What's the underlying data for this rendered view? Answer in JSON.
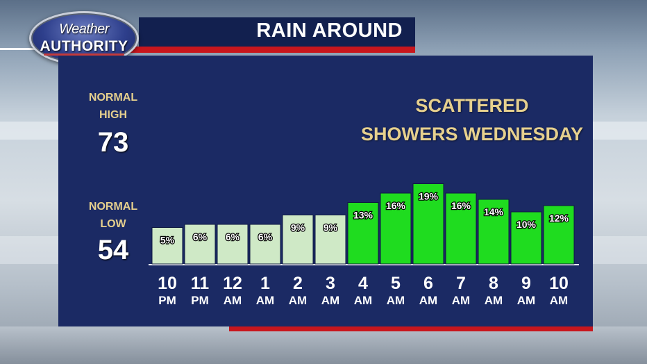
{
  "logo": {
    "line1": "Weather",
    "line2": "AUTHORITY"
  },
  "title": "RAIN AROUND",
  "normals": {
    "high_label_1": "NORMAL",
    "high_label_2": "HIGH",
    "high_value": "73",
    "low_label_1": "NORMAL",
    "low_label_2": "LOW",
    "low_value": "54"
  },
  "headline": {
    "line1": "SCATTERED",
    "line2": "SHOWERS WEDNESDAY"
  },
  "colors": {
    "panel": "#1b2a64",
    "accent_red": "#c8161d",
    "label_gold": "#e6d08e",
    "bar_light": "#cfe9c6",
    "bar_bright": "#1fdc1f"
  },
  "chart_data": {
    "type": "bar",
    "categories": [
      "10 PM",
      "11 PM",
      "12 AM",
      "1 AM",
      "2 AM",
      "3 AM",
      "4 AM",
      "5 AM",
      "6 AM",
      "7 AM",
      "8 AM",
      "9 AM",
      "10 AM"
    ],
    "tick_numbers": [
      "10",
      "11",
      "12",
      "1",
      "2",
      "3",
      "4",
      "5",
      "6",
      "7",
      "8",
      "9",
      "10"
    ],
    "tick_periods": [
      "PM",
      "PM",
      "AM",
      "AM",
      "AM",
      "AM",
      "AM",
      "AM",
      "AM",
      "AM",
      "AM",
      "AM",
      "AM"
    ],
    "values": [
      5,
      6,
      6,
      6,
      9,
      9,
      13,
      16,
      19,
      16,
      14,
      10,
      12
    ],
    "data_labels": [
      "5%",
      "6%",
      "6%",
      "6%",
      "9%",
      "9%",
      "13%",
      "16%",
      "19%",
      "16%",
      "14%",
      "10%",
      "12%"
    ],
    "bar_colors": [
      "#cfe9c6",
      "#cfe9c6",
      "#cfe9c6",
      "#cfe9c6",
      "#cfe9c6",
      "#cfe9c6",
      "#1fdc1f",
      "#1fdc1f",
      "#1fdc1f",
      "#1fdc1f",
      "#1fdc1f",
      "#1fdc1f",
      "#1fdc1f"
    ],
    "title": "",
    "xlabel": "",
    "ylabel": "",
    "grid": false
  }
}
